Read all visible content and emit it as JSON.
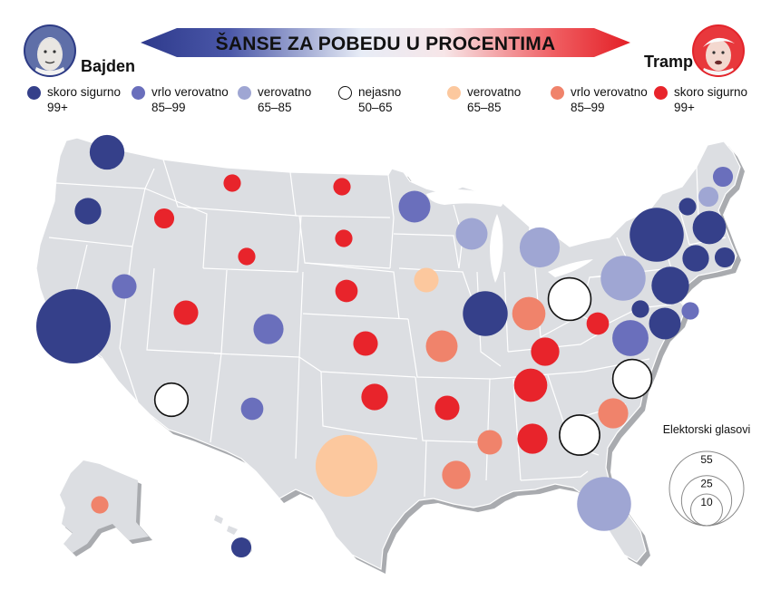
{
  "title": "ŠANSE ZA POBEDU U PROCENTIMA",
  "candidates": {
    "left": {
      "name": "Bajden",
      "portrait": "biden-portrait-icon"
    },
    "right": {
      "name": "Tramp",
      "portrait": "trump-portrait-icon"
    }
  },
  "colors": {
    "dem_sure": "#35408a",
    "dem_very": "#6a6fbc",
    "dem_likely": "#9fa6d3",
    "tossup": "#ffffff",
    "rep_likely": "#fcc89e",
    "rep_very": "#f0836b",
    "rep_sure": "#e8242b",
    "land": "#dcdee2",
    "border": "#ffffff",
    "shadow": "#a9abaf"
  },
  "legend": [
    {
      "key": "dem_sure",
      "label": "skoro sigurno",
      "range": "99+"
    },
    {
      "key": "dem_very",
      "label": "vrlo verovatno",
      "range": "85–99"
    },
    {
      "key": "dem_likely",
      "label": "verovatno",
      "range": "65–85"
    },
    {
      "key": "tossup",
      "label": "nejasno",
      "range": "50–65"
    },
    {
      "key": "rep_likely",
      "label": "verovatno",
      "range": "65–85"
    },
    {
      "key": "rep_very",
      "label": "vrlo verovatno",
      "range": "85–99"
    },
    {
      "key": "rep_sure",
      "label": "skoro sigurno",
      "range": "99+"
    }
  ],
  "size_legend": {
    "title": "Elektorski glasovi",
    "values": [
      55,
      25,
      10
    ]
  },
  "states": [
    {
      "state": "WA",
      "category": "dem_sure",
      "electoral_votes": 12
    },
    {
      "state": "OR",
      "category": "dem_sure",
      "electoral_votes": 7
    },
    {
      "state": "CA",
      "category": "dem_sure",
      "electoral_votes": 55
    },
    {
      "state": "NV",
      "category": "dem_very",
      "electoral_votes": 6
    },
    {
      "state": "ID",
      "category": "rep_sure",
      "electoral_votes": 4
    },
    {
      "state": "MT",
      "category": "rep_sure",
      "electoral_votes": 3
    },
    {
      "state": "WY",
      "category": "rep_sure",
      "electoral_votes": 3
    },
    {
      "state": "UT",
      "category": "rep_sure",
      "electoral_votes": 6
    },
    {
      "state": "CO",
      "category": "dem_very",
      "electoral_votes": 9
    },
    {
      "state": "AZ",
      "category": "tossup",
      "electoral_votes": 11
    },
    {
      "state": "NM",
      "category": "dem_very",
      "electoral_votes": 5
    },
    {
      "state": "ND",
      "category": "rep_sure",
      "electoral_votes": 3
    },
    {
      "state": "SD",
      "category": "rep_sure",
      "electoral_votes": 3
    },
    {
      "state": "NE",
      "category": "rep_sure",
      "electoral_votes": 5
    },
    {
      "state": "KS",
      "category": "rep_sure",
      "electoral_votes": 6
    },
    {
      "state": "OK",
      "category": "rep_sure",
      "electoral_votes": 7
    },
    {
      "state": "TX",
      "category": "rep_likely",
      "electoral_votes": 38
    },
    {
      "state": "MN",
      "category": "dem_very",
      "electoral_votes": 10
    },
    {
      "state": "IA",
      "category": "rep_likely",
      "electoral_votes": 6
    },
    {
      "state": "MO",
      "category": "rep_very",
      "electoral_votes": 10
    },
    {
      "state": "AR",
      "category": "rep_sure",
      "electoral_votes": 6
    },
    {
      "state": "LA",
      "category": "rep_very",
      "electoral_votes": 8
    },
    {
      "state": "WI",
      "category": "dem_likely",
      "electoral_votes": 10
    },
    {
      "state": "IL",
      "category": "dem_sure",
      "electoral_votes": 20
    },
    {
      "state": "MI",
      "category": "dem_likely",
      "electoral_votes": 16
    },
    {
      "state": "IN",
      "category": "rep_very",
      "electoral_votes": 11
    },
    {
      "state": "OH",
      "category": "tossup",
      "electoral_votes": 18
    },
    {
      "state": "KY",
      "category": "rep_sure",
      "electoral_votes": 8
    },
    {
      "state": "TN",
      "category": "rep_sure",
      "electoral_votes": 11
    },
    {
      "state": "MS",
      "category": "rep_very",
      "electoral_votes": 6
    },
    {
      "state": "AL",
      "category": "rep_sure",
      "electoral_votes": 9
    },
    {
      "state": "GA",
      "category": "tossup",
      "electoral_votes": 16
    },
    {
      "state": "FL",
      "category": "dem_likely",
      "electoral_votes": 29
    },
    {
      "state": "SC",
      "category": "rep_very",
      "electoral_votes": 9
    },
    {
      "state": "NC",
      "category": "tossup",
      "electoral_votes": 15
    },
    {
      "state": "WV",
      "category": "rep_sure",
      "electoral_votes": 5
    },
    {
      "state": "VA",
      "category": "dem_very",
      "electoral_votes": 13
    },
    {
      "state": "PA",
      "category": "dem_likely",
      "electoral_votes": 20
    },
    {
      "state": "NY",
      "category": "dem_sure",
      "electoral_votes": 29
    },
    {
      "state": "NJ",
      "category": "dem_sure",
      "electoral_votes": 14
    },
    {
      "state": "MD",
      "category": "dem_sure",
      "electoral_votes": 10
    },
    {
      "state": "DE",
      "category": "dem_sure",
      "electoral_votes": 3
    },
    {
      "state": "DC",
      "category": "dem_very",
      "electoral_votes": 3
    },
    {
      "state": "MA",
      "category": "dem_sure",
      "electoral_votes": 11
    },
    {
      "state": "CT",
      "category": "dem_sure",
      "electoral_votes": 7
    },
    {
      "state": "RI",
      "category": "dem_sure",
      "electoral_votes": 4
    },
    {
      "state": "VT",
      "category": "dem_sure",
      "electoral_votes": 3
    },
    {
      "state": "NH",
      "category": "dem_likely",
      "electoral_votes": 4
    },
    {
      "state": "ME",
      "category": "dem_very",
      "electoral_votes": 4
    },
    {
      "state": "AK",
      "category": "rep_very",
      "electoral_votes": 3
    },
    {
      "state": "HI",
      "category": "dem_sure",
      "electoral_votes": 4
    }
  ]
}
